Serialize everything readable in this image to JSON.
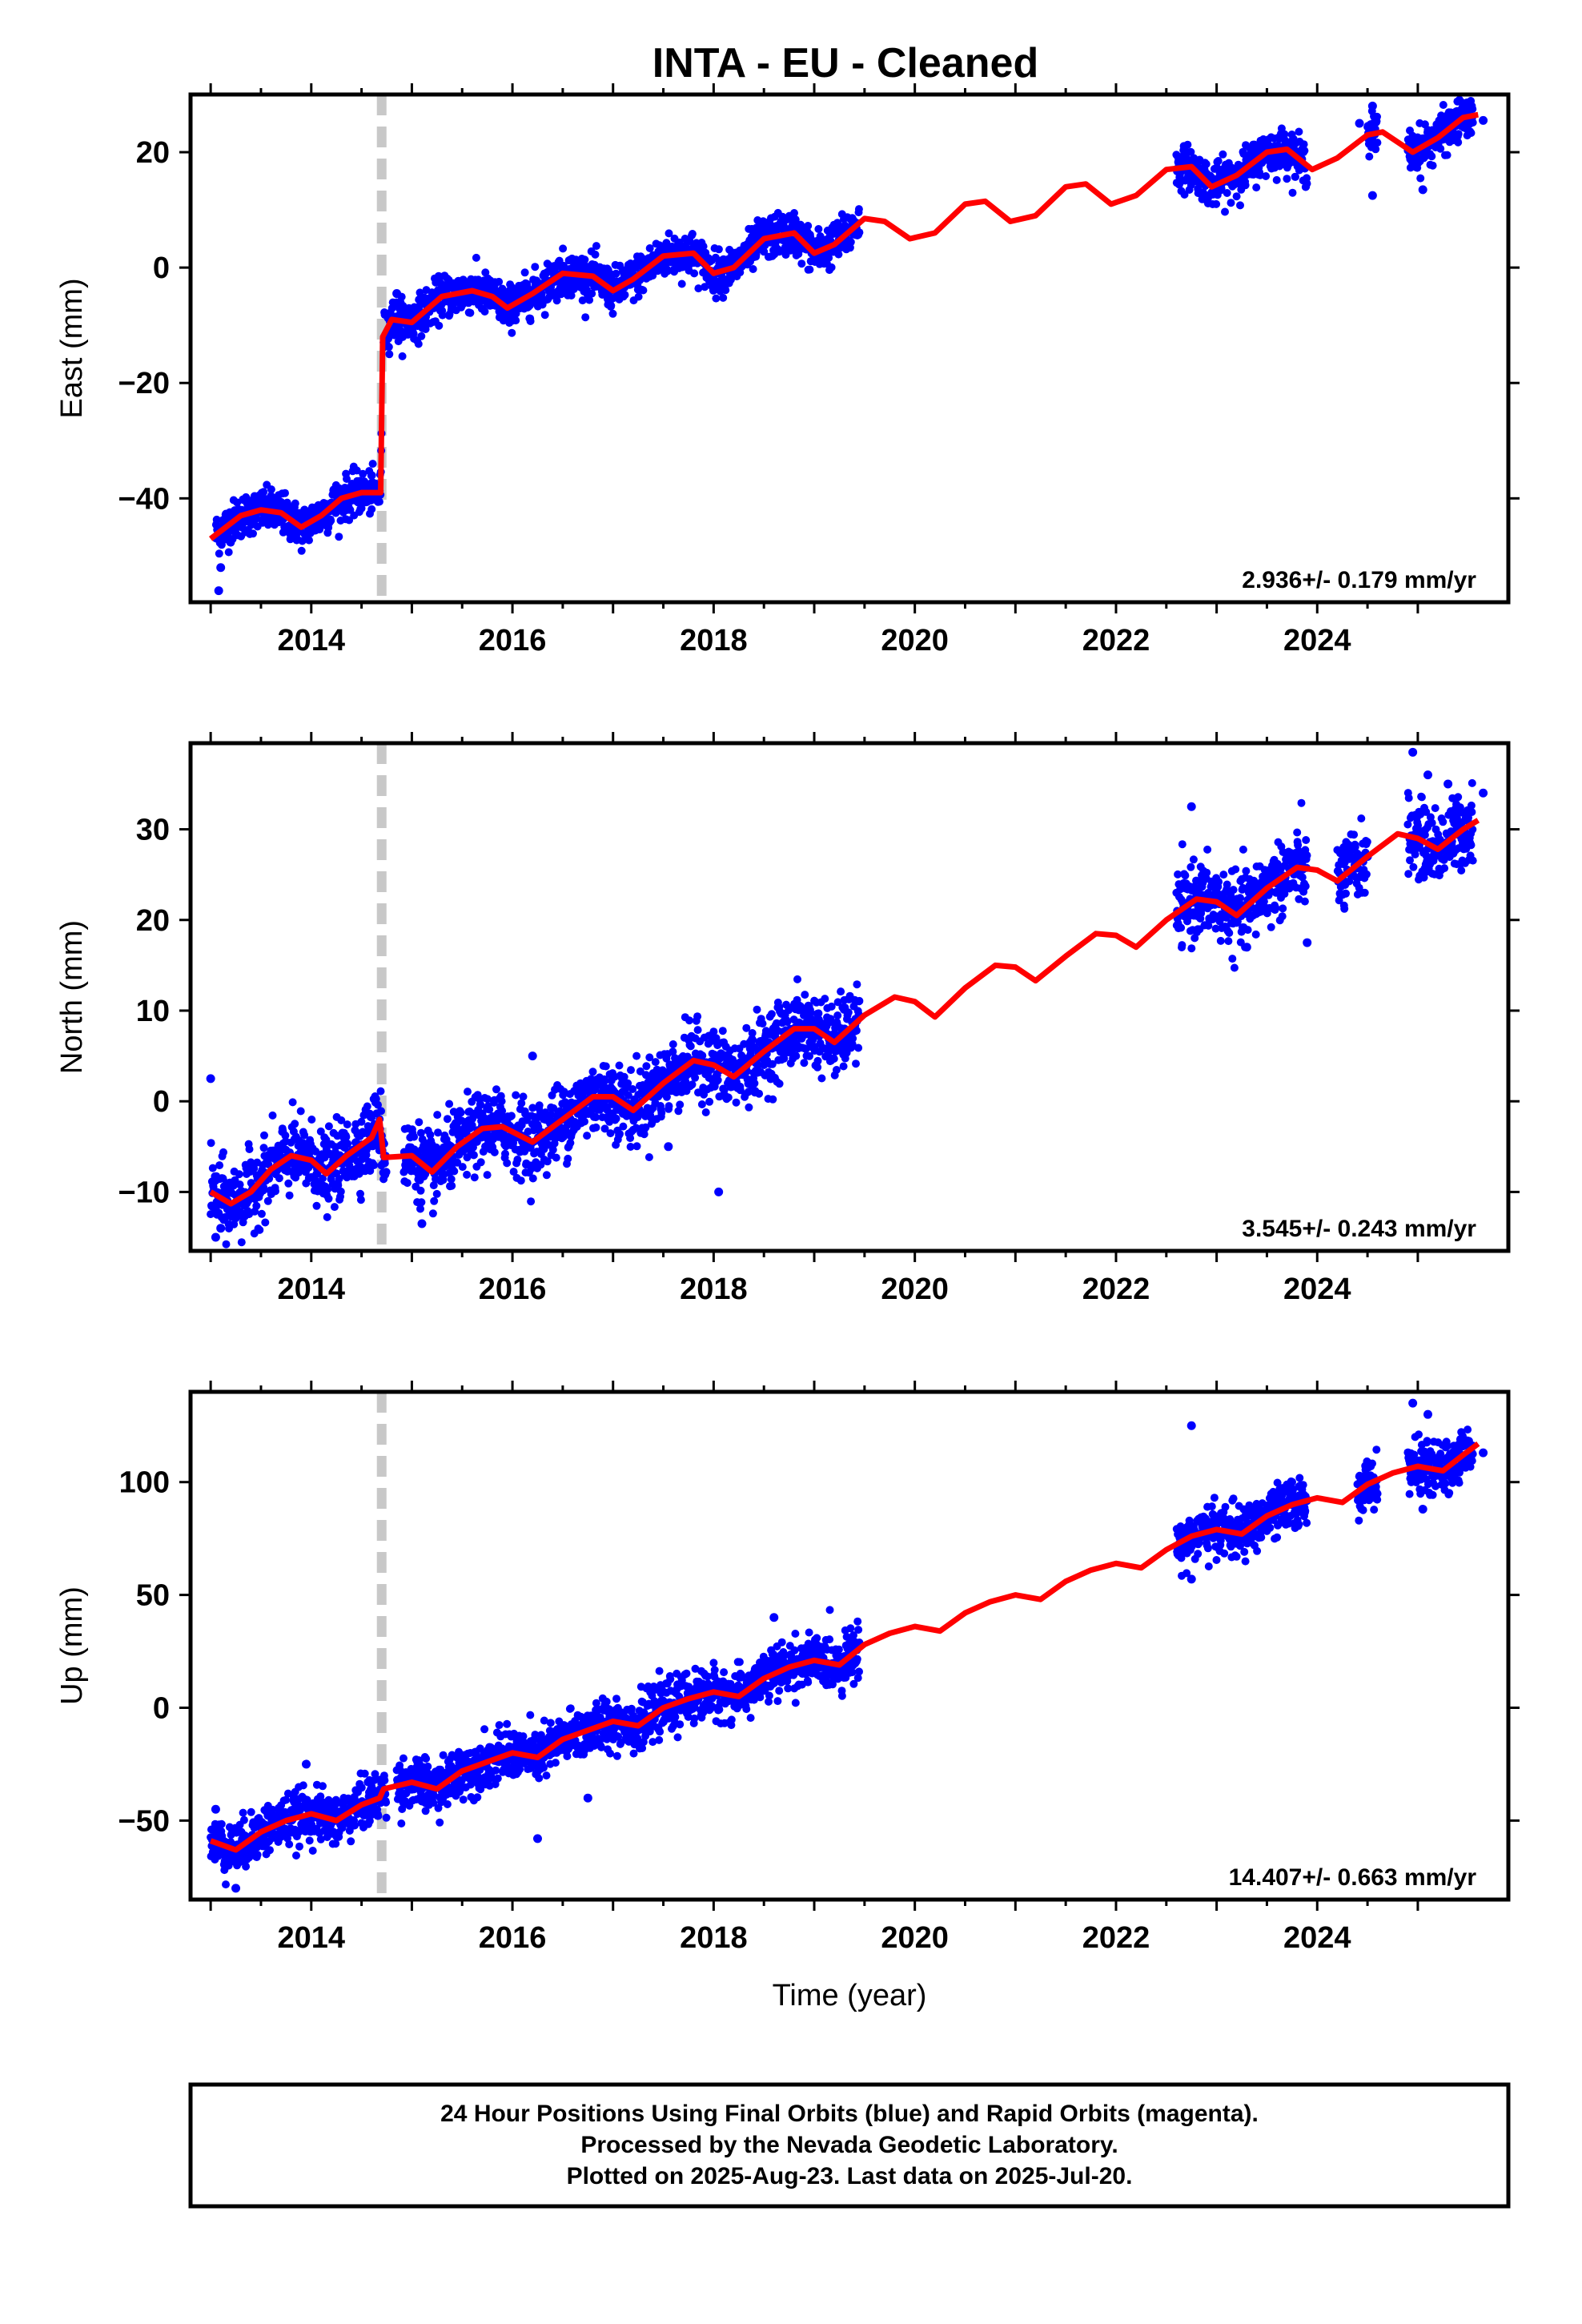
{
  "title": "INTA  - EU - Cleaned",
  "xlabel": "Time (year)",
  "x_ticks": [
    2014,
    2016,
    2018,
    2020,
    2022,
    2024
  ],
  "xlim": [
    2012.8,
    2025.9
  ],
  "equipment_change": 2014.7,
  "colors": {
    "points": "#0000ff",
    "model": "#ff0000",
    "event": "#c8c8c8"
  },
  "footer": {
    "lines": [
      "24 Hour Positions Using Final Orbits (blue) and Rapid Orbits (magenta).",
      "Processed by the Nevada Geodetic Laboratory.",
      "Plotted on 2025-Aug-23. Last data on 2025-Jul-20."
    ]
  },
  "chart_data": [
    {
      "type": "scatter",
      "panel": "east",
      "ylabel": "East (mm)",
      "ylim": [
        -58,
        30
      ],
      "y_ticks": [
        -40,
        -20,
        0,
        20
      ],
      "rate_text": "2.936+/- 0.179 mm/yr",
      "data_segments": [
        [
          2013.05,
          2014.7
        ],
        [
          2014.72,
          2019.45
        ],
        [
          2022.6,
          2023.9
        ],
        [
          2024.5,
          2024.6
        ],
        [
          2024.9,
          2025.55
        ]
      ],
      "model": {
        "points": [
          [
            2013.0,
            -47
          ],
          [
            2013.3,
            -43
          ],
          [
            2013.5,
            -42
          ],
          [
            2013.7,
            -42.5
          ],
          [
            2013.9,
            -45
          ],
          [
            2014.1,
            -43
          ],
          [
            2014.3,
            -40
          ],
          [
            2014.5,
            -39
          ],
          [
            2014.69,
            -39
          ],
          [
            2014.71,
            -12
          ],
          [
            2014.8,
            -9
          ],
          [
            2015.0,
            -9.5
          ],
          [
            2015.3,
            -5
          ],
          [
            2015.6,
            -4
          ],
          [
            2015.8,
            -5
          ],
          [
            2015.95,
            -7
          ],
          [
            2016.2,
            -4.5
          ],
          [
            2016.5,
            -1
          ],
          [
            2016.8,
            -1.5
          ],
          [
            2017.0,
            -4
          ],
          [
            2017.2,
            -2
          ],
          [
            2017.5,
            2
          ],
          [
            2017.8,
            2.5
          ],
          [
            2018.0,
            -1
          ],
          [
            2018.2,
            0
          ],
          [
            2018.5,
            5
          ],
          [
            2018.8,
            6
          ],
          [
            2019.0,
            2.5
          ],
          [
            2019.2,
            4
          ],
          [
            2019.5,
            8.5
          ],
          [
            2019.7,
            8
          ],
          [
            2019.95,
            5
          ],
          [
            2020.2,
            6
          ],
          [
            2020.5,
            11
          ],
          [
            2020.7,
            11.5
          ],
          [
            2020.95,
            8
          ],
          [
            2021.2,
            9
          ],
          [
            2021.5,
            14
          ],
          [
            2021.7,
            14.5
          ],
          [
            2021.95,
            11
          ],
          [
            2022.2,
            12.5
          ],
          [
            2022.5,
            17
          ],
          [
            2022.75,
            17.5
          ],
          [
            2022.95,
            14
          ],
          [
            2023.2,
            16
          ],
          [
            2023.5,
            20
          ],
          [
            2023.7,
            20.5
          ],
          [
            2023.95,
            17
          ],
          [
            2024.2,
            19
          ],
          [
            2024.5,
            23
          ],
          [
            2024.65,
            23.5
          ],
          [
            2024.95,
            20
          ],
          [
            2025.2,
            22.5
          ],
          [
            2025.45,
            26
          ],
          [
            2025.6,
            26.5
          ]
        ]
      },
      "noise": 1.8,
      "outliers": [
        [
          2013.08,
          -56
        ],
        [
          2013.1,
          -52
        ],
        [
          2014.85,
          -4.5
        ],
        [
          2024.42,
          25
        ],
        [
          2024.55,
          28
        ],
        [
          2024.55,
          12.5
        ],
        [
          2025.05,
          13.5
        ],
        [
          2025.65,
          25.5
        ]
      ]
    },
    {
      "type": "scatter",
      "panel": "north",
      "ylabel": "North (mm)",
      "ylim": [
        -16.5,
        39.5
      ],
      "y_ticks": [
        -10,
        0,
        10,
        20,
        30
      ],
      "rate_text": "3.545+/- 0.243 mm/yr",
      "data_segments": [
        [
          2013.0,
          2014.75
        ],
        [
          2014.92,
          2019.45
        ],
        [
          2022.6,
          2023.9
        ],
        [
          2024.2,
          2024.5
        ],
        [
          2024.9,
          2025.55
        ]
      ],
      "model": {
        "points": [
          [
            2013.0,
            -10
          ],
          [
            2013.2,
            -11.3
          ],
          [
            2013.4,
            -10
          ],
          [
            2013.6,
            -7.5
          ],
          [
            2013.8,
            -6
          ],
          [
            2014.0,
            -6.5
          ],
          [
            2014.15,
            -8
          ],
          [
            2014.35,
            -6
          ],
          [
            2014.6,
            -4
          ],
          [
            2014.68,
            -2
          ],
          [
            2014.72,
            -6.2
          ],
          [
            2015.0,
            -6
          ],
          [
            2015.2,
            -7.8
          ],
          [
            2015.45,
            -5
          ],
          [
            2015.7,
            -3
          ],
          [
            2015.9,
            -2.8
          ],
          [
            2016.2,
            -4.5
          ],
          [
            2016.5,
            -2
          ],
          [
            2016.8,
            0.5
          ],
          [
            2017.0,
            0.5
          ],
          [
            2017.2,
            -1
          ],
          [
            2017.5,
            2
          ],
          [
            2017.8,
            4.5
          ],
          [
            2018.0,
            4
          ],
          [
            2018.2,
            2.7
          ],
          [
            2018.5,
            5.5
          ],
          [
            2018.8,
            8
          ],
          [
            2019.0,
            8
          ],
          [
            2019.2,
            6.5
          ],
          [
            2019.5,
            9.5
          ],
          [
            2019.8,
            11.5
          ],
          [
            2020.0,
            11
          ],
          [
            2020.2,
            9.3
          ],
          [
            2020.5,
            12.5
          ],
          [
            2020.8,
            15
          ],
          [
            2021.0,
            14.8
          ],
          [
            2021.2,
            13.3
          ],
          [
            2021.5,
            16
          ],
          [
            2021.8,
            18.5
          ],
          [
            2022.0,
            18.3
          ],
          [
            2022.2,
            17
          ],
          [
            2022.5,
            20
          ],
          [
            2022.8,
            22.3
          ],
          [
            2023.0,
            22
          ],
          [
            2023.2,
            20.5
          ],
          [
            2023.5,
            23.5
          ],
          [
            2023.8,
            25.8
          ],
          [
            2024.0,
            25.5
          ],
          [
            2024.2,
            24.3
          ],
          [
            2024.5,
            27
          ],
          [
            2024.8,
            29.5
          ],
          [
            2025.0,
            29
          ],
          [
            2025.2,
            27.8
          ],
          [
            2025.45,
            30
          ],
          [
            2025.6,
            31
          ]
        ]
      },
      "noise": 2.0,
      "outliers": [
        [
          2013.0,
          2.5
        ],
        [
          2013.05,
          -15
        ],
        [
          2013.1,
          -14
        ],
        [
          2015.1,
          -13.5
        ],
        [
          2016.2,
          5
        ],
        [
          2017.55,
          -5
        ],
        [
          2018.05,
          -10
        ],
        [
          2022.75,
          32.5
        ],
        [
          2023.3,
          17
        ],
        [
          2023.9,
          17.5
        ],
        [
          2024.5,
          27
        ],
        [
          2024.95,
          38.5
        ],
        [
          2025.1,
          36
        ],
        [
          2025.3,
          35
        ],
        [
          2025.65,
          34
        ]
      ]
    },
    {
      "type": "scatter",
      "panel": "up",
      "ylabel": "Up (mm)",
      "ylim": [
        -85,
        140
      ],
      "y_ticks": [
        -50,
        0,
        50,
        100
      ],
      "rate_text": "14.407+/- 0.663 mm/yr",
      "data_segments": [
        [
          2013.0,
          2014.75
        ],
        [
          2014.85,
          2019.45
        ],
        [
          2022.6,
          2023.9
        ],
        [
          2024.4,
          2024.6
        ],
        [
          2024.9,
          2025.55
        ]
      ],
      "model": {
        "points": [
          [
            2013.0,
            -59
          ],
          [
            2013.25,
            -63
          ],
          [
            2013.5,
            -55
          ],
          [
            2013.75,
            -50
          ],
          [
            2014.0,
            -47
          ],
          [
            2014.25,
            -50
          ],
          [
            2014.5,
            -43
          ],
          [
            2014.68,
            -40
          ],
          [
            2014.72,
            -36
          ],
          [
            2015.0,
            -33
          ],
          [
            2015.25,
            -36
          ],
          [
            2015.5,
            -28
          ],
          [
            2015.75,
            -24
          ],
          [
            2016.0,
            -20
          ],
          [
            2016.25,
            -22
          ],
          [
            2016.5,
            -14
          ],
          [
            2016.75,
            -10
          ],
          [
            2017.0,
            -6
          ],
          [
            2017.25,
            -8
          ],
          [
            2017.5,
            0
          ],
          [
            2017.75,
            4
          ],
          [
            2018.0,
            7
          ],
          [
            2018.25,
            5
          ],
          [
            2018.5,
            13
          ],
          [
            2018.75,
            18
          ],
          [
            2019.0,
            21
          ],
          [
            2019.25,
            19
          ],
          [
            2019.5,
            28
          ],
          [
            2019.75,
            33
          ],
          [
            2020.0,
            36
          ],
          [
            2020.25,
            34
          ],
          [
            2020.5,
            42
          ],
          [
            2020.75,
            47
          ],
          [
            2021.0,
            50
          ],
          [
            2021.25,
            48
          ],
          [
            2021.5,
            56
          ],
          [
            2021.75,
            61
          ],
          [
            2022.0,
            64
          ],
          [
            2022.25,
            62
          ],
          [
            2022.5,
            70
          ],
          [
            2022.75,
            76
          ],
          [
            2023.0,
            79
          ],
          [
            2023.25,
            77
          ],
          [
            2023.5,
            85
          ],
          [
            2023.75,
            90
          ],
          [
            2024.0,
            93
          ],
          [
            2024.25,
            91
          ],
          [
            2024.5,
            99
          ],
          [
            2024.75,
            104
          ],
          [
            2025.0,
            107
          ],
          [
            2025.25,
            105
          ],
          [
            2025.45,
            112
          ],
          [
            2025.6,
            117
          ]
        ]
      },
      "noise": 5.5,
      "outliers": [
        [
          2013.05,
          -45
        ],
        [
          2013.25,
          -80
        ],
        [
          2013.95,
          -25
        ],
        [
          2016.25,
          -58
        ],
        [
          2016.75,
          -40
        ],
        [
          2018.6,
          40
        ],
        [
          2022.75,
          125
        ],
        [
          2022.75,
          57
        ],
        [
          2024.95,
          135
        ],
        [
          2025.1,
          130
        ],
        [
          2025.05,
          88
        ],
        [
          2025.65,
          113
        ]
      ]
    }
  ]
}
